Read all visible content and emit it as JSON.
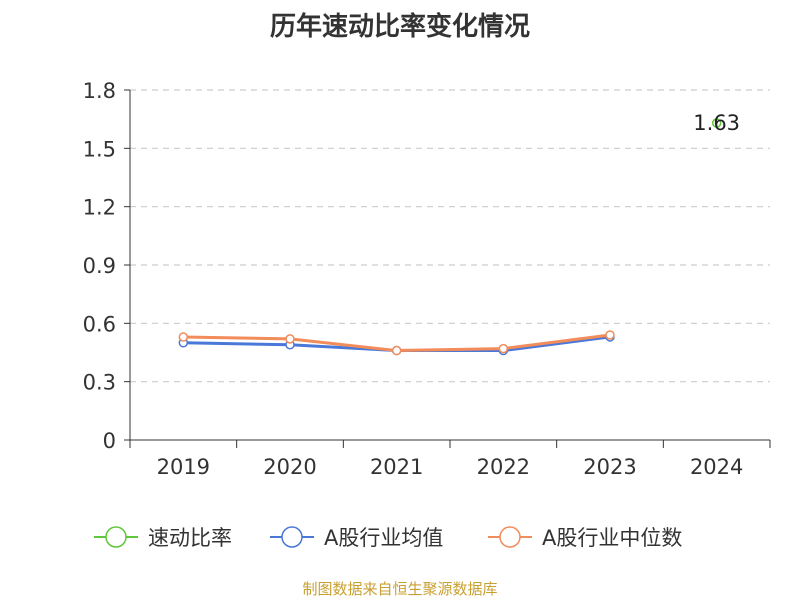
{
  "chart_data": {
    "type": "line",
    "title": "历年速动比率变化情况",
    "categories": [
      "2019",
      "2020",
      "2021",
      "2022",
      "2023",
      "2024"
    ],
    "ylim": [
      0,
      1.8
    ],
    "yticks": [
      "0",
      "0.3",
      "0.6",
      "0.9",
      "1.2",
      "1.5",
      "1.8"
    ],
    "grid": true,
    "legend_position": "bottom",
    "series": [
      {
        "name": "速动比率",
        "color": "#5fc73a",
        "values": [
          null,
          null,
          null,
          null,
          null,
          1.63
        ],
        "labels": [
          null,
          null,
          null,
          null,
          null,
          "1.63"
        ]
      },
      {
        "name": "A股行业均值",
        "color": "#4a78d8",
        "values": [
          0.5,
          0.49,
          0.46,
          0.46,
          0.53,
          null
        ]
      },
      {
        "name": "A股行业中位数",
        "color": "#f28c5a",
        "values": [
          0.53,
          0.52,
          0.46,
          0.47,
          0.54,
          null
        ]
      }
    ]
  },
  "source": "制图数据来自恒生聚源数据库"
}
